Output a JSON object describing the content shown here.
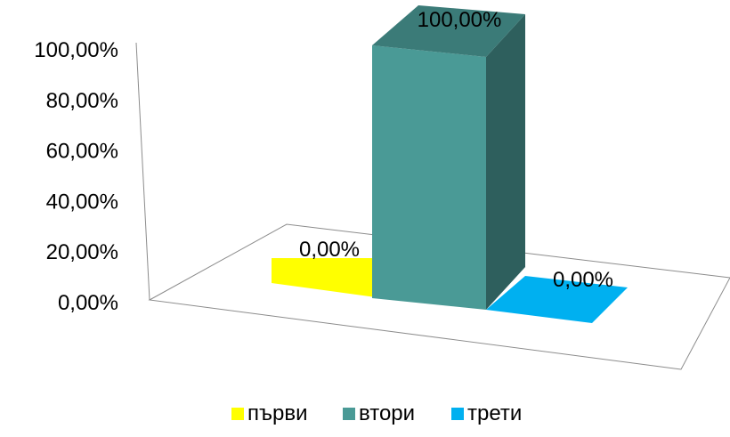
{
  "chart_data": {
    "type": "bar",
    "categories": [
      "първи",
      "втори",
      "трети"
    ],
    "values": [
      0,
      100,
      0
    ],
    "value_labels": [
      "0,00%",
      "100,00%",
      "0,00%"
    ],
    "ylim": [
      0,
      100
    ],
    "yticks": [
      0,
      20,
      40,
      60,
      80,
      100
    ],
    "ytick_labels": [
      "0,00%",
      "20,00%",
      "40,00%",
      "60,00%",
      "80,00%",
      "100,00%"
    ],
    "grid": false,
    "legend": "bottom",
    "colors": [
      "#FFFF00",
      "#4A9A96",
      "#00B0F0"
    ]
  }
}
